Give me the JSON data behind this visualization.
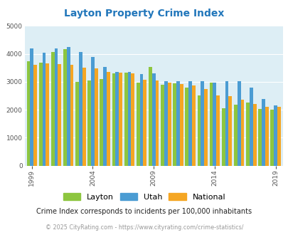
{
  "title": "Layton Property Crime Index",
  "subtitle": "Crime Index corresponds to incidents per 100,000 inhabitants",
  "footer": "© 2025 CityRating.com - https://www.cityrating.com/crime-statistics/",
  "years": [
    1999,
    2000,
    2001,
    2002,
    2003,
    2004,
    2005,
    2006,
    2007,
    2008,
    2009,
    2010,
    2011,
    2012,
    2013,
    2014,
    2015,
    2016,
    2017,
    2018,
    2019
  ],
  "layton": [
    3730,
    3680,
    4060,
    4180,
    3000,
    3050,
    3110,
    3300,
    3330,
    2970,
    3530,
    2900,
    2950,
    2780,
    2500,
    2960,
    2060,
    2175,
    2260,
    2030,
    2010
  ],
  "utah": [
    4200,
    4040,
    4200,
    4240,
    4060,
    3880,
    3520,
    3350,
    3350,
    3280,
    3310,
    3020,
    3030,
    3030,
    3010,
    2980,
    3030,
    3030,
    2780,
    2390,
    2160
  ],
  "national": [
    3610,
    3670,
    3620,
    3610,
    3500,
    3490,
    3340,
    3330,
    3300,
    3060,
    3040,
    2970,
    2910,
    2870,
    2730,
    2510,
    2490,
    2360,
    2200,
    2100,
    2100
  ],
  "color_layton": "#8dc63f",
  "color_utah": "#4b9cd3",
  "color_national": "#f5a623",
  "bg_color": "#ddeef5",
  "ylim": [
    0,
    5000
  ],
  "yticks": [
    0,
    1000,
    2000,
    3000,
    4000,
    5000
  ],
  "xtick_years": [
    1999,
    2004,
    2009,
    2014,
    2019
  ],
  "xtick_labels": [
    "1999",
    "2004",
    "2009",
    "2014",
    "2019"
  ],
  "title_color": "#2277bb",
  "subtitle_color": "#222222",
  "footer_color": "#999999",
  "grid_color": "#ffffff",
  "bar_width": 0.28
}
